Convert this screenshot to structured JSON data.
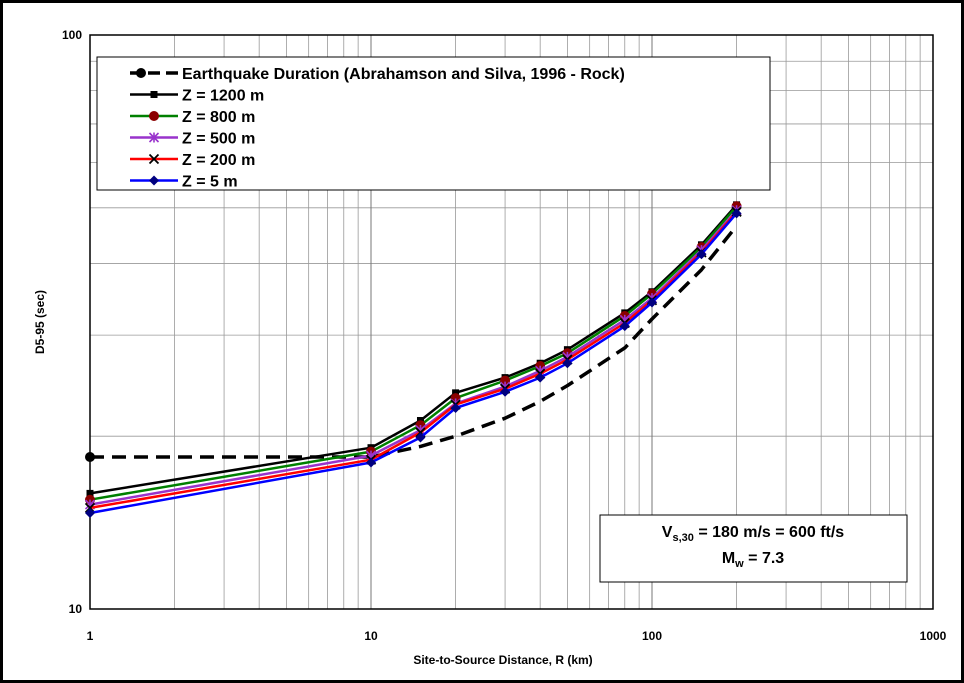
{
  "chart_data": {
    "type": "line",
    "xlabel": "Site-to-Source Distance, R (km)",
    "ylabel": "D5-95 (sec)",
    "xscale": "log",
    "yscale": "log",
    "xlim": [
      1,
      1000
    ],
    "ylim": [
      10,
      100
    ],
    "xticks": [
      1,
      10,
      100,
      1000
    ],
    "yticks": [
      10,
      100
    ],
    "grid": true,
    "legend": "upper left",
    "x": [
      1,
      10,
      15,
      20,
      30,
      40,
      50,
      80,
      100,
      150,
      200
    ],
    "series": [
      {
        "name": "Earthquake Duration (Abrahamson and Silva, 1996 - Rock)",
        "color": "#000000",
        "marker_color": "#000000",
        "marker": "circle",
        "markers": "first",
        "dash": true,
        "values": [
          18.4,
          18.4,
          19.2,
          20,
          21.5,
          23,
          24.5,
          28.5,
          32,
          39,
          46.5
        ]
      },
      {
        "name": "Z = 1200 m",
        "color": "#000000",
        "marker_color": "#000000",
        "marker": "square",
        "values": [
          15.9,
          19.1,
          21.3,
          23.8,
          25.3,
          26.8,
          28.3,
          32.8,
          35.7,
          43.1,
          50.6
        ]
      },
      {
        "name": "Z = 800 m",
        "color": "#008000",
        "marker_color": "#8b0000",
        "marker": "circle",
        "values": [
          15.5,
          18.8,
          20.9,
          23.3,
          25.0,
          26.5,
          27.9,
          32.4,
          35.4,
          42.7,
          50.3
        ]
      },
      {
        "name": "Z = 500 m",
        "color": "#9933cc",
        "marker_color": "#9933cc",
        "marker": "star",
        "values": [
          15.2,
          18.5,
          20.5,
          22.8,
          24.4,
          26.0,
          27.5,
          31.9,
          34.8,
          42.2,
          49.5
        ]
      },
      {
        "name": "Z = 200 m",
        "color": "#ff0000",
        "marker_color": "#000000",
        "marker": "x",
        "values": [
          15.0,
          18.2,
          20.3,
          22.7,
          24.2,
          25.7,
          27.2,
          31.5,
          34.5,
          41.8,
          49.2
        ]
      },
      {
        "name": "Z = 5 m",
        "color": "#0000ff",
        "marker_color": "#000080",
        "marker": "diamond",
        "values": [
          14.7,
          18.0,
          19.9,
          22.4,
          23.9,
          25.3,
          26.8,
          31.1,
          34.2,
          41.5,
          48.9
        ]
      }
    ],
    "annotations": [
      {
        "main": "V",
        "sub": "s,30",
        "rest": " = 180 m/s = 600 ft/s"
      },
      {
        "main": "M",
        "sub": "w",
        "rest": " = 7.3"
      }
    ]
  }
}
